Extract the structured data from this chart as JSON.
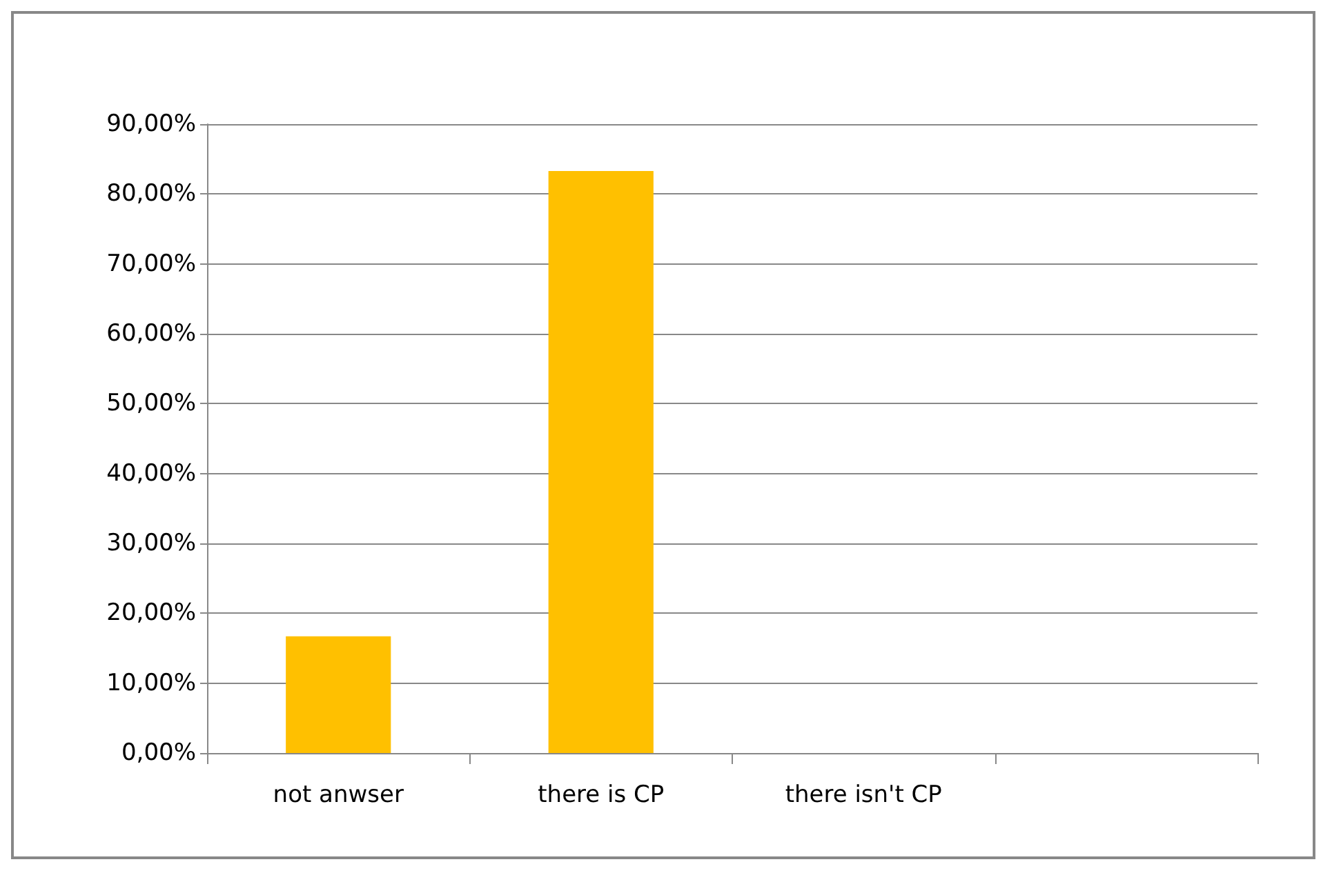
{
  "chart_data": {
    "type": "bar",
    "categories": [
      "not anwser",
      "there is CP",
      "there isn't CP",
      null
    ],
    "values": [
      16.7,
      83.3,
      0,
      null
    ],
    "color": "#ffc000",
    "ylim": [
      0,
      90
    ],
    "yticks": [
      {
        "value": 0,
        "label": "0,00%"
      },
      {
        "value": 10,
        "label": "10,00%"
      },
      {
        "value": 20,
        "label": "20,00%"
      },
      {
        "value": 30,
        "label": "30,00%"
      },
      {
        "value": 40,
        "label": "40,00%"
      },
      {
        "value": 50,
        "label": "50,00%"
      },
      {
        "value": 60,
        "label": "60,00%"
      },
      {
        "value": 70,
        "label": "70,00%"
      },
      {
        "value": 80,
        "label": "80,00%"
      },
      {
        "value": 90,
        "label": "90,00%"
      }
    ],
    "grid": "y"
  }
}
